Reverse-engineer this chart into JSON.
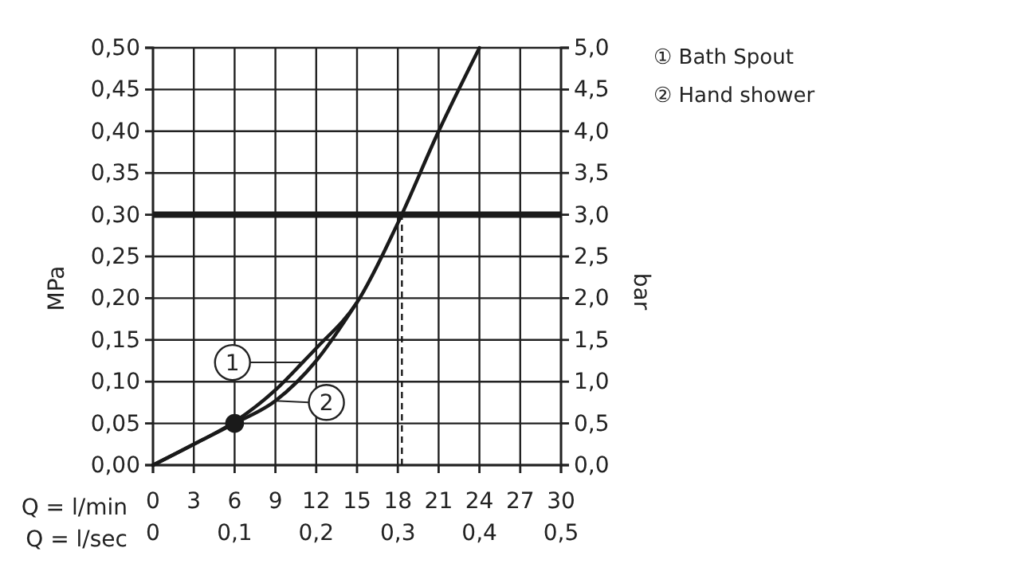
{
  "chart_data": {
    "type": "line",
    "xlabel": "Q = l/min",
    "x2label": "Q = l/sec",
    "ylabel": "MPa",
    "y2label": "bar",
    "xlim": [
      0,
      30
    ],
    "xticks": [
      0,
      3,
      6,
      9,
      12,
      15,
      18,
      21,
      24,
      27,
      30
    ],
    "x2lim": [
      0,
      0.5
    ],
    "x2ticks": [
      0,
      {
        "value": 0.1,
        "label": "0,1"
      },
      {
        "value": 0.2,
        "label": "0,2"
      },
      {
        "value": 0.3,
        "label": "0,3"
      },
      {
        "value": 0.4,
        "label": "0,4"
      },
      {
        "value": 0.5,
        "label": "0,5"
      }
    ],
    "ylim": [
      0,
      0.5
    ],
    "yticks": [
      {
        "value": 0,
        "label": "0,00"
      },
      {
        "value": 0.05,
        "label": "0,05"
      },
      {
        "value": 0.1,
        "label": "0,10"
      },
      {
        "value": 0.15,
        "label": "0,15"
      },
      {
        "value": 0.2,
        "label": "0,20"
      },
      {
        "value": 0.25,
        "label": "0,25"
      },
      {
        "value": 0.3,
        "label": "0,30"
      },
      {
        "value": 0.35,
        "label": "0,35"
      },
      {
        "value": 0.4,
        "label": "0,40"
      },
      {
        "value": 0.45,
        "label": "0,45"
      },
      {
        "value": 0.5,
        "label": "0,50"
      }
    ],
    "y2lim": [
      0,
      5
    ],
    "y2ticks": [
      {
        "value": 0,
        "label": "0,0"
      },
      {
        "value": 0.5,
        "label": "0,5"
      },
      {
        "value": 1,
        "label": "1,0"
      },
      {
        "value": 1.5,
        "label": "1,5"
      },
      {
        "value": 2,
        "label": "2,0"
      },
      {
        "value": 2.5,
        "label": "2,5"
      },
      {
        "value": 3,
        "label": "3,0"
      },
      {
        "value": 3.5,
        "label": "3,5"
      },
      {
        "value": 4,
        "label": "4,0"
      },
      {
        "value": 4.5,
        "label": "4,5"
      },
      {
        "value": 5,
        "label": "5,0"
      }
    ],
    "grid": true,
    "legend": "top right",
    "line_style": "solid",
    "series": [
      {
        "name": "① Bath Spout",
        "color": "#1a1a1a",
        "x": [
          0,
          3,
          6,
          9,
          11,
          12,
          15,
          18,
          21,
          24
        ],
        "values": [
          0,
          0.025,
          0.052,
          0.09,
          0.123,
          0.14,
          0.195,
          0.29,
          0.4,
          0.5
        ]
      },
      {
        "name": "② Hand shower",
        "color": "#1a1a1a",
        "x": [
          0,
          3,
          6,
          9,
          12,
          15
        ],
        "values": [
          0,
          0.025,
          0.05,
          0.077,
          0.125,
          0.195
        ]
      },
      {
        "type": "scatter",
        "marker": "circle",
        "color": "#1a1a1a",
        "x": [
          6
        ],
        "values": [
          0.05
        ]
      }
    ],
    "ref_lines": [
      {
        "axis": "y",
        "value": 0.3,
        "color": "#1a1a1a",
        "line_style": "solid"
      },
      {
        "axis": "x",
        "value": 18.3,
        "color": "#1a1a1a",
        "line_style": "dashed"
      }
    ],
    "annotations": [
      {
        "text": "1",
        "x": 11,
        "y": 0.123
      },
      {
        "text": "2",
        "x": 9,
        "y": 0.077
      }
    ]
  }
}
